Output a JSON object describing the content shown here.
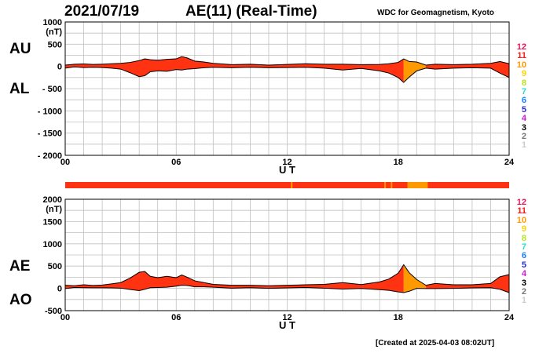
{
  "header": {
    "date": "2021/07/19",
    "title": "AE(11) (Real-Time)",
    "source": "WDC for Geomagnetism, Kyoto"
  },
  "footer": {
    "created": "[Created at 2025-04-03 08:02UT]"
  },
  "side_labels": {
    "au": "AU",
    "al": "AL",
    "ae": "AE",
    "ao": "AO"
  },
  "legend_levels": [
    {
      "label": "12",
      "color": "#e8145a"
    },
    {
      "label": "11",
      "color": "#ff1a1a"
    },
    {
      "label": "10",
      "color": "#ff9900"
    },
    {
      "label": "9",
      "color": "#ffd200"
    },
    {
      "label": "8",
      "color": "#b5e61d"
    },
    {
      "label": "7",
      "color": "#2ed9d0"
    },
    {
      "label": "6",
      "color": "#1a7fff"
    },
    {
      "label": "5",
      "color": "#2b2bd6"
    },
    {
      "label": "4",
      "color": "#d11ad1"
    },
    {
      "label": "3",
      "color": "#000000"
    },
    {
      "label": "2",
      "color": "#777777"
    },
    {
      "label": "1",
      "color": "#cccccc"
    }
  ],
  "chart_data": [
    {
      "type": "area",
      "panel": "AU/AL",
      "xlabel": "U T",
      "ylabel": "(nT)",
      "xlim": [
        0,
        24
      ],
      "ylim": [
        -2000,
        1000
      ],
      "grid": true,
      "x_ticks": [
        "00",
        "06",
        "12",
        "18",
        "24"
      ],
      "y_ticks": [
        "1000",
        "500",
        "0",
        "- 500",
        "- 1000",
        "- 1500",
        "- 2000"
      ],
      "x": [
        0,
        0.5,
        1,
        1.5,
        2,
        2.5,
        3,
        3.5,
        4,
        4.3,
        4.6,
        5,
        5.5,
        6,
        6.3,
        6.6,
        7,
        7.5,
        8,
        9,
        10,
        11,
        12,
        13,
        14,
        15,
        16,
        17,
        17.5,
        18,
        18.3,
        18.6,
        19,
        19.5,
        20,
        21,
        22,
        23,
        23.5,
        24
      ],
      "series": [
        {
          "name": "AU",
          "values": [
            30,
            50,
            55,
            45,
            50,
            60,
            70,
            90,
            130,
            170,
            150,
            140,
            160,
            170,
            220,
            190,
            120,
            100,
            70,
            40,
            50,
            30,
            45,
            60,
            50,
            50,
            40,
            45,
            60,
            90,
            170,
            110,
            100,
            30,
            50,
            40,
            50,
            70,
            110,
            60
          ]
        },
        {
          "name": "AL",
          "values": [
            -40,
            -10,
            -25,
            -20,
            -25,
            -40,
            -60,
            -140,
            -230,
            -210,
            -120,
            -100,
            -110,
            -70,
            -80,
            -60,
            -50,
            -30,
            -20,
            -30,
            -20,
            -30,
            -25,
            -20,
            -40,
            -80,
            -45,
            -100,
            -150,
            -250,
            -360,
            -240,
            -100,
            -40,
            -60,
            -40,
            -30,
            -40,
            -150,
            -250
          ]
        }
      ]
    },
    {
      "type": "area",
      "panel": "AE/AO",
      "xlabel": "U T",
      "ylabel": "(nT)",
      "xlim": [
        0,
        24
      ],
      "ylim": [
        -500,
        2000
      ],
      "grid": true,
      "x_ticks": [
        "00",
        "06",
        "12",
        "18",
        "24"
      ],
      "y_ticks": [
        "2000",
        "1500",
        "1000",
        "500",
        "0",
        "-500"
      ],
      "x": [
        0,
        0.5,
        1,
        1.5,
        2,
        2.5,
        3,
        3.5,
        4,
        4.3,
        4.6,
        5,
        5.5,
        6,
        6.3,
        6.6,
        7,
        7.5,
        8,
        9,
        10,
        11,
        12,
        13,
        14,
        15,
        16,
        17,
        17.5,
        18,
        18.3,
        18.6,
        19,
        19.5,
        20,
        21,
        22,
        23,
        23.5,
        24
      ],
      "series": [
        {
          "name": "AE",
          "values": [
            70,
            60,
            80,
            65,
            75,
            100,
            130,
            230,
            360,
            380,
            270,
            240,
            270,
            240,
            300,
            250,
            170,
            130,
            90,
            70,
            70,
            60,
            70,
            80,
            90,
            130,
            85,
            145,
            210,
            340,
            530,
            350,
            200,
            70,
            110,
            80,
            80,
            110,
            260,
            310
          ]
        },
        {
          "name": "AO",
          "values": [
            -5,
            20,
            15,
            12,
            12,
            10,
            5,
            -25,
            -50,
            -20,
            15,
            20,
            25,
            50,
            70,
            65,
            35,
            35,
            25,
            5,
            15,
            0,
            10,
            20,
            5,
            -15,
            -3,
            -28,
            -45,
            -80,
            -95,
            -65,
            0,
            -5,
            -5,
            0,
            10,
            15,
            -20,
            -95
          ]
        }
      ]
    }
  ]
}
